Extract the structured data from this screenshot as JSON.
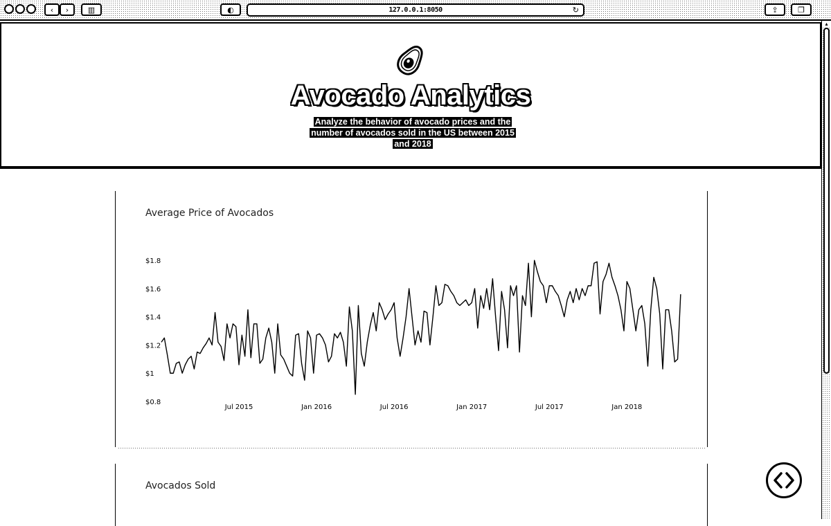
{
  "browser": {
    "url": "127.0.0.1:8050",
    "buttons": [
      "back-icon",
      "forward-icon",
      "sidebar-icon",
      "privacy-icon",
      "reload-icon",
      "share-icon",
      "tabs-icon"
    ]
  },
  "header": {
    "icon": "avocado-icon",
    "title": "Avocado Analytics",
    "description": "Analyze the behavior of avocado prices and the number of avocados sold in the US between 2015 and 2018"
  },
  "price_card": {
    "title": "Average Price of Avocados"
  },
  "sold_card": {
    "title": "Avocados Sold"
  },
  "chart_data": {
    "type": "line",
    "title": "Average Price of Avocados",
    "xlabel": "",
    "ylabel": "",
    "ylim": [
      0.8,
      1.85
    ],
    "y_tick_values": [
      0.8,
      1.0,
      1.2,
      1.4,
      1.6,
      1.8
    ],
    "y_tick_labels": [
      "$0.8",
      "$1",
      "$1.2",
      "$1.4",
      "$1.6",
      "$1.8"
    ],
    "x_tick_labels": [
      "Jul 2015",
      "Jan 2016",
      "Jul 2016",
      "Jan 2017",
      "Jul 2017",
      "Jan 2018"
    ],
    "x_range_weeks": [
      0,
      168
    ],
    "x_tick_weeks": [
      26,
      52,
      78,
      104,
      130,
      156
    ],
    "grid": false,
    "line_color": "#000000",
    "series": [
      {
        "values": [
          1.22,
          1.25,
          1.13,
          1.0,
          1.0,
          1.07,
          1.08,
          1.0,
          1.06,
          1.1,
          1.12,
          1.03,
          1.15,
          1.14,
          1.18,
          1.21,
          1.25,
          1.2,
          1.43,
          1.22,
          1.19,
          1.09,
          1.35,
          1.25,
          1.35,
          1.33,
          1.06,
          1.27,
          1.12,
          1.45,
          1.11,
          1.35,
          1.35,
          1.07,
          1.1,
          1.25,
          1.32,
          1.22,
          1.0,
          1.35,
          1.13,
          1.1,
          1.05,
          1.0,
          0.98,
          1.27,
          1.28,
          1.07,
          0.95,
          1.3,
          1.25,
          1.0,
          1.27,
          1.28,
          1.25,
          1.2,
          1.08,
          1.12,
          1.28,
          1.25,
          1.29,
          1.22,
          1.05,
          1.47,
          1.3,
          0.85,
          1.48,
          1.14,
          1.05,
          1.22,
          1.34,
          1.43,
          1.3,
          1.5,
          1.45,
          1.38,
          1.42,
          1.45,
          1.5,
          1.25,
          1.12,
          1.25,
          1.4,
          1.6,
          1.4,
          1.2,
          1.3,
          1.22,
          1.44,
          1.43,
          1.2,
          1.4,
          1.62,
          1.48,
          1.5,
          1.63,
          1.62,
          1.58,
          1.55,
          1.5,
          1.48,
          1.5,
          1.52,
          1.48,
          1.5,
          1.6,
          1.32,
          1.55,
          1.46,
          1.6,
          1.45,
          1.67,
          1.4,
          1.16,
          1.58,
          1.45,
          1.18,
          1.62,
          1.55,
          1.62,
          1.15,
          1.55,
          1.48,
          1.78,
          1.4,
          1.8,
          1.72,
          1.65,
          1.62,
          1.5,
          1.62,
          1.62,
          1.58,
          1.55,
          1.48,
          1.4,
          1.52,
          1.58,
          1.5,
          1.6,
          1.52,
          1.6,
          1.55,
          1.62,
          1.62,
          1.78,
          1.79,
          1.42,
          1.65,
          1.7,
          1.78,
          1.68,
          1.62,
          1.55,
          1.45,
          1.3,
          1.65,
          1.6,
          1.45,
          1.3,
          1.45,
          1.48,
          1.35,
          1.05,
          1.45,
          1.68,
          1.6,
          1.42,
          1.03,
          1.45,
          1.45,
          1.3,
          1.08,
          1.1,
          1.56
        ]
      }
    ]
  }
}
